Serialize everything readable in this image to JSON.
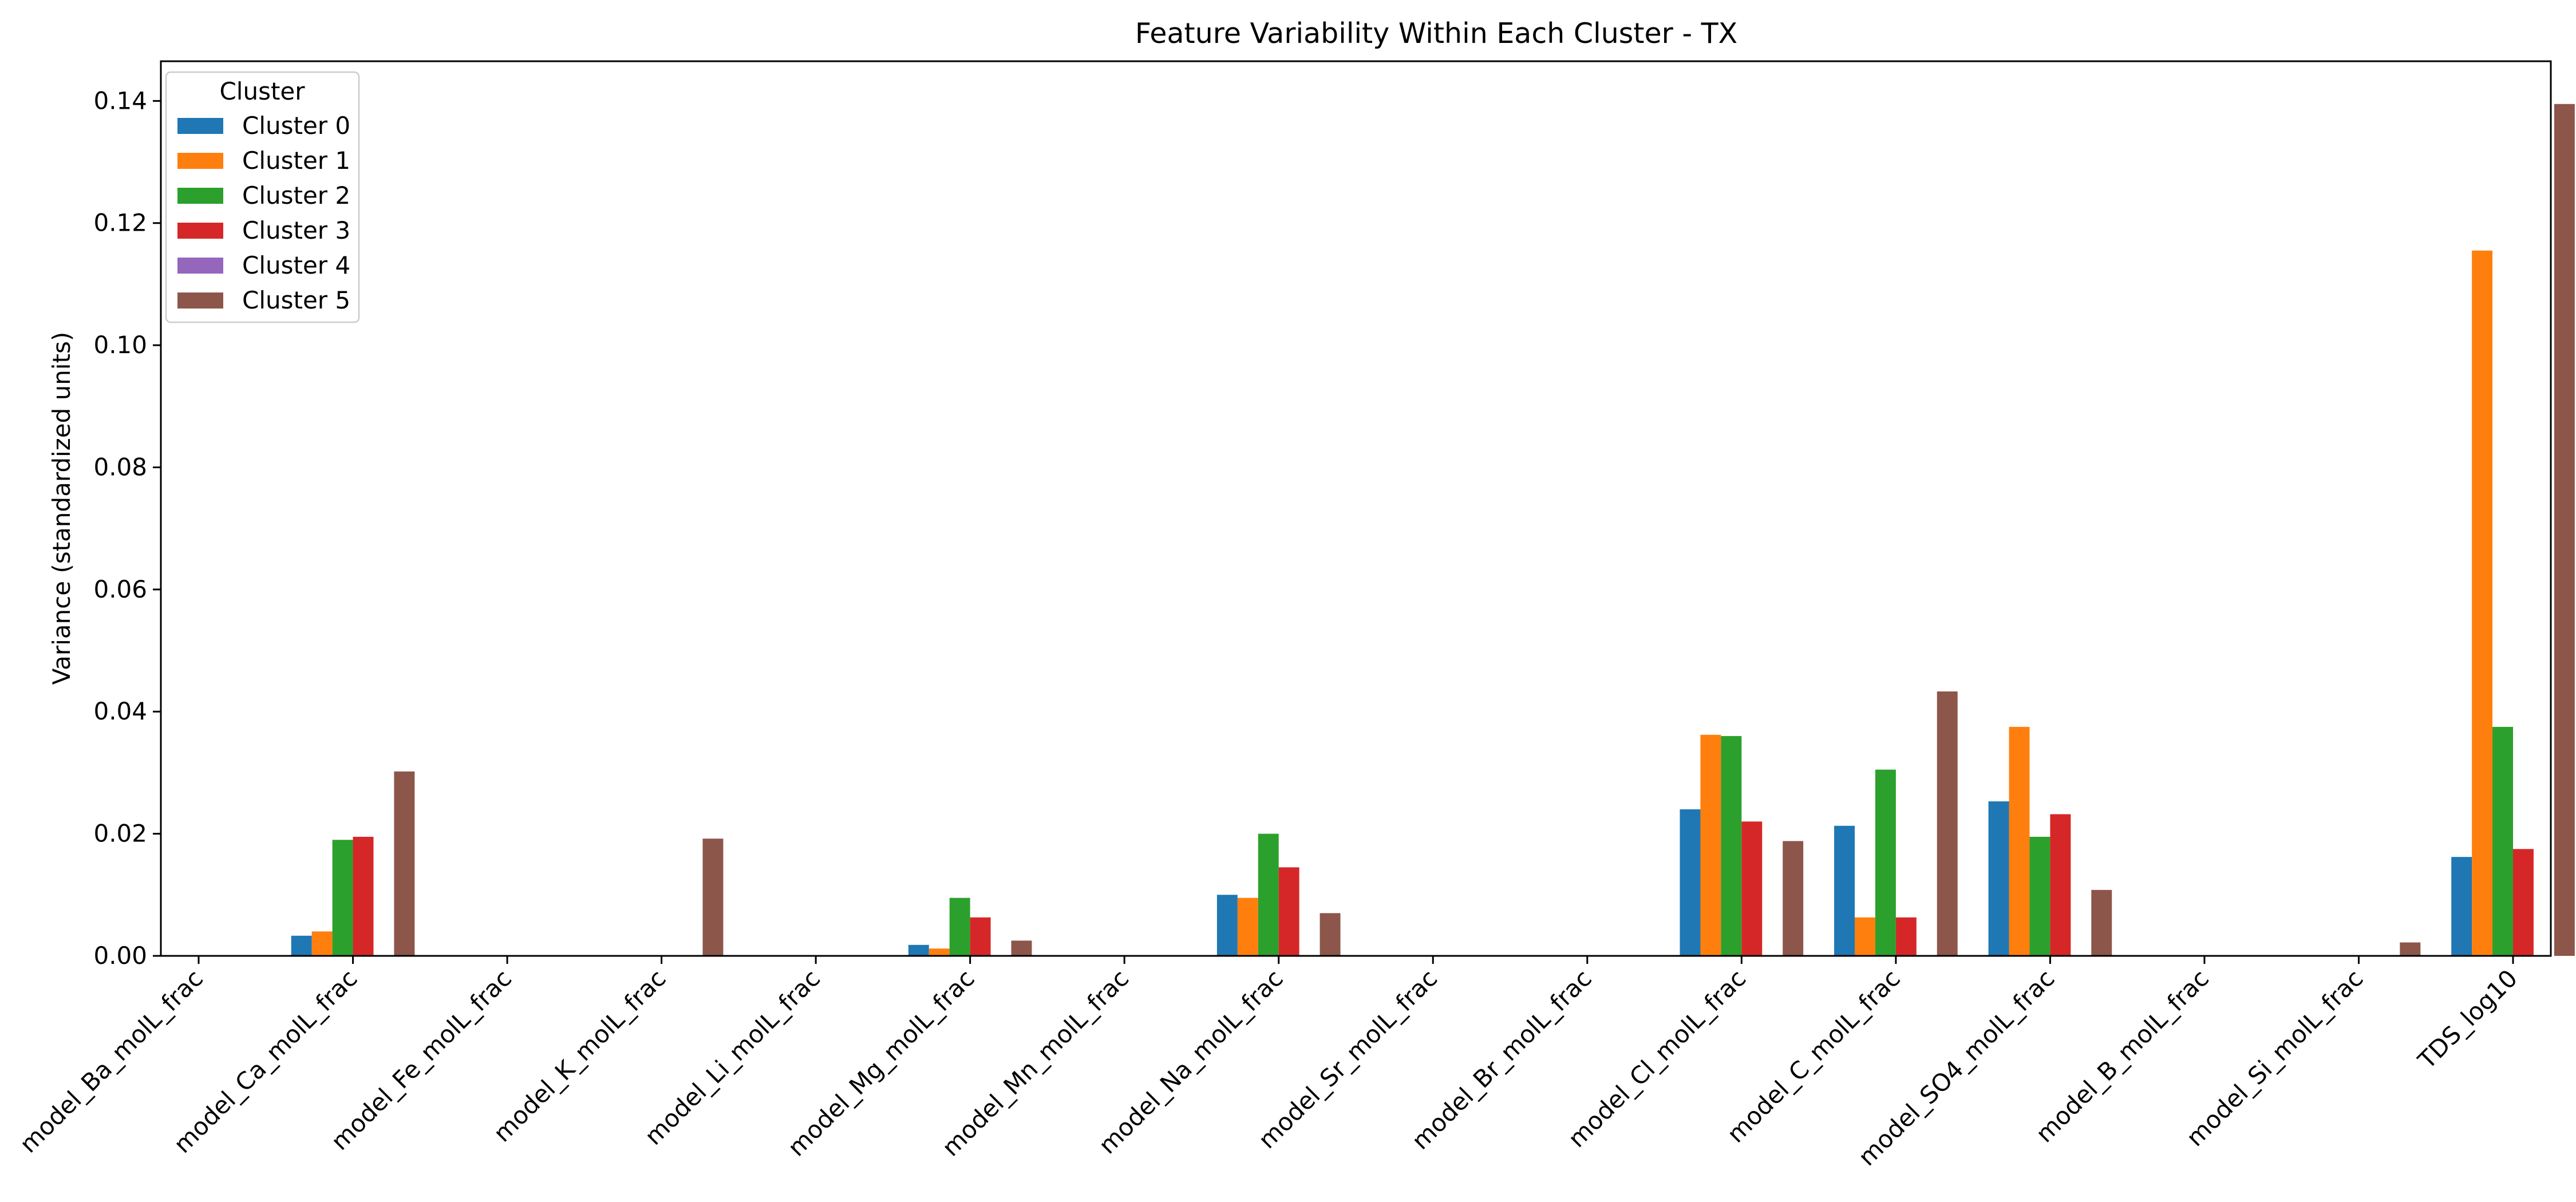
{
  "chart_data": {
    "type": "bar",
    "title": "Feature Variability Within Each Cluster - TX",
    "xlabel": "",
    "ylabel": "Variance (standardized units)",
    "ylim": [
      0,
      0.1465
    ],
    "yticks": [
      0.0,
      0.02,
      0.04,
      0.06,
      0.08,
      0.1,
      0.12,
      0.14
    ],
    "ytick_labels": [
      "0.00",
      "0.02",
      "0.04",
      "0.06",
      "0.08",
      "0.10",
      "0.12",
      "0.14"
    ],
    "grid": false,
    "legend": {
      "title": "Cluster",
      "position": "top-left"
    },
    "categories": [
      "model_Ba_molL_frac",
      "model_Ca_molL_frac",
      "model_Fe_molL_frac",
      "model_K_molL_frac",
      "model_Li_molL_frac",
      "model_Mg_molL_frac",
      "model_Mn_molL_frac",
      "model_Na_molL_frac",
      "model_Sr_molL_frac",
      "model_Br_molL_frac",
      "model_Cl_molL_frac",
      "model_C_molL_frac",
      "model_SO4_molL_frac",
      "model_B_molL_frac",
      "model_Si_molL_frac",
      "TDS_log10"
    ],
    "series": [
      {
        "name": "Cluster 0",
        "color": "#1f77b4",
        "values": [
          0,
          0.0033,
          0,
          0,
          0,
          0.0018,
          0,
          0.01,
          0,
          0,
          0.024,
          0.0213,
          0.0253,
          0,
          0,
          0.0162
        ]
      },
      {
        "name": "Cluster 1",
        "color": "#ff7f0e",
        "values": [
          0,
          0.004,
          0,
          0,
          0,
          0.0012,
          0,
          0.0095,
          0,
          0,
          0.0362,
          0.0063,
          0.0375,
          0,
          0,
          0.1155
        ]
      },
      {
        "name": "Cluster 2",
        "color": "#2ca02c",
        "values": [
          0,
          0.019,
          0,
          0,
          0,
          0.0095,
          0,
          0.02,
          0,
          0,
          0.036,
          0.0305,
          0.0195,
          0,
          0,
          0.0375
        ]
      },
      {
        "name": "Cluster 3",
        "color": "#d62728",
        "values": [
          0,
          0.0195,
          0,
          0,
          0,
          0.0063,
          0,
          0.0145,
          0,
          0,
          0.022,
          0.0063,
          0.0232,
          0,
          0,
          0.0175
        ]
      },
      {
        "name": "Cluster 4",
        "color": "#9467bd",
        "values": [
          0,
          0,
          0,
          0,
          0,
          0,
          0,
          0,
          0,
          0,
          0,
          0,
          0,
          0,
          0,
          0
        ]
      },
      {
        "name": "Cluster 5",
        "color": "#8c564b",
        "values": [
          0,
          0.0302,
          0,
          0.0192,
          0,
          0.0025,
          0,
          0.007,
          0,
          0,
          0.0188,
          0.0433,
          0.0108,
          0,
          0.0022,
          0.1395
        ]
      }
    ]
  }
}
